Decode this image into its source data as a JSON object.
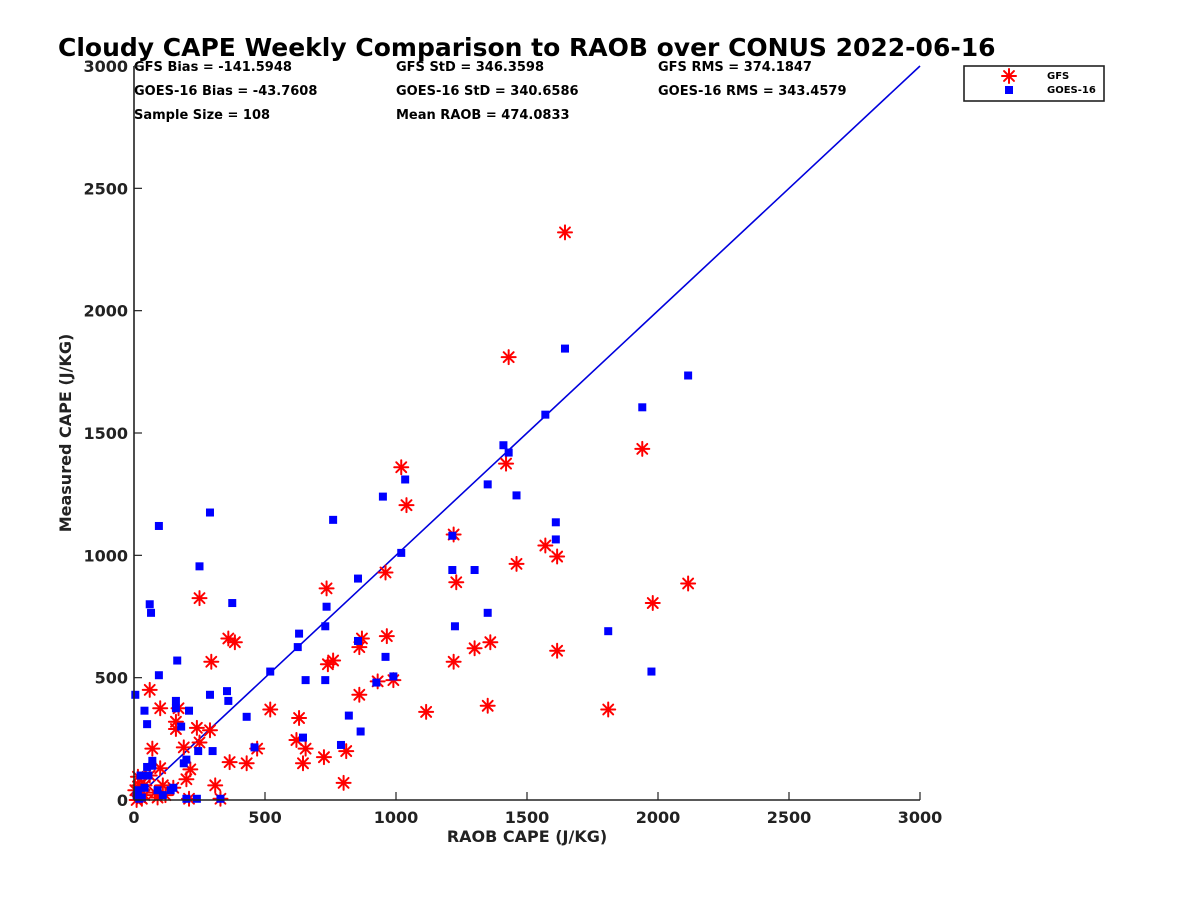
{
  "chart_data": {
    "type": "scatter",
    "title": "Cloudy CAPE Weekly Comparison to RAOB over CONUS 2022-06-16",
    "xlabel": "RAOB CAPE (J/KG)",
    "ylabel": "Measured CAPE (J/KG)",
    "xlim": [
      0,
      3000
    ],
    "ylim": [
      0,
      3000
    ],
    "xticks": [
      "0",
      "500",
      "1000",
      "1500",
      "2000",
      "2500",
      "3000"
    ],
    "yticks": [
      "0",
      "500",
      "1000",
      "1500",
      "2000",
      "2500",
      "3000"
    ],
    "grid": false,
    "legend_position": "top-right, outside plot",
    "reference_line": {
      "x": [
        0,
        3000
      ],
      "y": [
        0,
        3000
      ],
      "color": "#0000dd"
    },
    "stats": [
      [
        "GFS Bias = -141.5948",
        "GFS StD = 346.3598",
        "GFS RMS = 374.1847"
      ],
      [
        "GOES-16 Bias = -43.7608",
        "GOES-16 StD = 340.6586",
        "GOES-16 RMS = 343.4579"
      ],
      [
        "Sample Size = 108",
        "Mean RAOB = 474.0833",
        ""
      ]
    ],
    "series": [
      {
        "name": "GFS",
        "marker": "asterisk",
        "color": "#ff0000",
        "points": [
          [
            1645,
            2320
          ],
          [
            1430,
            1810
          ],
          [
            1940,
            1435
          ],
          [
            1420,
            1375
          ],
          [
            1020,
            1360
          ],
          [
            1040,
            1205
          ],
          [
            1220,
            1085
          ],
          [
            1230,
            890
          ],
          [
            1460,
            965
          ],
          [
            1570,
            1040
          ],
          [
            1615,
            995
          ],
          [
            960,
            930
          ],
          [
            2115,
            885
          ],
          [
            1980,
            805
          ],
          [
            1615,
            610
          ],
          [
            1360,
            645
          ],
          [
            1300,
            620
          ],
          [
            1220,
            565
          ],
          [
            1350,
            385
          ],
          [
            1810,
            370
          ],
          [
            1115,
            360
          ],
          [
            965,
            670
          ],
          [
            870,
            660
          ],
          [
            860,
            625
          ],
          [
            990,
            490
          ],
          [
            930,
            485
          ],
          [
            860,
            430
          ],
          [
            810,
            200
          ],
          [
            800,
            70
          ],
          [
            735,
            865
          ],
          [
            760,
            570
          ],
          [
            740,
            555
          ],
          [
            725,
            175
          ],
          [
            655,
            210
          ],
          [
            645,
            150
          ],
          [
            630,
            335
          ],
          [
            620,
            245
          ],
          [
            520,
            370
          ],
          [
            470,
            210
          ],
          [
            430,
            150
          ],
          [
            365,
            155
          ],
          [
            385,
            645
          ],
          [
            360,
            660
          ],
          [
            250,
            825
          ],
          [
            295,
            565
          ],
          [
            290,
            285
          ],
          [
            250,
            235
          ],
          [
            240,
            295
          ],
          [
            215,
            125
          ],
          [
            210,
            5
          ],
          [
            200,
            85
          ],
          [
            190,
            215
          ],
          [
            160,
            290
          ],
          [
            160,
            320
          ],
          [
            170,
            375
          ],
          [
            150,
            50
          ],
          [
            100,
            375
          ],
          [
            110,
            60
          ],
          [
            70,
            210
          ],
          [
            60,
            450
          ],
          [
            60,
            100
          ],
          [
            40,
            20
          ],
          [
            80,
            30
          ],
          [
            90,
            10
          ],
          [
            30,
            5
          ],
          [
            20,
            60
          ],
          [
            10,
            0
          ],
          [
            15,
            95
          ],
          [
            40,
            60
          ],
          [
            5,
            40
          ],
          [
            330,
            5
          ],
          [
            310,
            60
          ],
          [
            120,
            20
          ],
          [
            100,
            130
          ]
        ]
      },
      {
        "name": "GOES-16",
        "marker": "square",
        "color": "#0000ff",
        "points": [
          [
            1645,
            1845
          ],
          [
            2115,
            1735
          ],
          [
            1940,
            1605
          ],
          [
            1570,
            1575
          ],
          [
            1410,
            1450
          ],
          [
            1430,
            1420
          ],
          [
            1350,
            1290
          ],
          [
            1460,
            1245
          ],
          [
            950,
            1240
          ],
          [
            1035,
            1310
          ],
          [
            1020,
            1010
          ],
          [
            1215,
            1080
          ],
          [
            1610,
            1135
          ],
          [
            1610,
            1065
          ],
          [
            1215,
            940
          ],
          [
            1300,
            940
          ],
          [
            1225,
            710
          ],
          [
            1350,
            765
          ],
          [
            1810,
            690
          ],
          [
            1975,
            525
          ],
          [
            760,
            1145
          ],
          [
            855,
            905
          ],
          [
            735,
            790
          ],
          [
            730,
            710
          ],
          [
            630,
            680
          ],
          [
            625,
            625
          ],
          [
            960,
            585
          ],
          [
            855,
            650
          ],
          [
            990,
            505
          ],
          [
            925,
            480
          ],
          [
            865,
            280
          ],
          [
            820,
            345
          ],
          [
            790,
            225
          ],
          [
            730,
            490
          ],
          [
            655,
            490
          ],
          [
            645,
            255
          ],
          [
            520,
            525
          ],
          [
            460,
            215
          ],
          [
            430,
            340
          ],
          [
            375,
            805
          ],
          [
            360,
            405
          ],
          [
            355,
            445
          ],
          [
            290,
            1175
          ],
          [
            250,
            955
          ],
          [
            290,
            430
          ],
          [
            300,
            200
          ],
          [
            245,
            200
          ],
          [
            240,
            5
          ],
          [
            210,
            365
          ],
          [
            200,
            165
          ],
          [
            190,
            150
          ],
          [
            180,
            300
          ],
          [
            165,
            570
          ],
          [
            160,
            405
          ],
          [
            160,
            375
          ],
          [
            150,
            50
          ],
          [
            140,
            40
          ],
          [
            95,
            1120
          ],
          [
            95,
            510
          ],
          [
            60,
            800
          ],
          [
            65,
            765
          ],
          [
            50,
            310
          ],
          [
            40,
            365
          ],
          [
            50,
            135
          ],
          [
            70,
            160
          ],
          [
            70,
            140
          ],
          [
            55,
            100
          ],
          [
            40,
            50
          ],
          [
            30,
            10
          ],
          [
            25,
            100
          ],
          [
            10,
            20
          ],
          [
            5,
            430
          ],
          [
            90,
            40
          ],
          [
            110,
            20
          ],
          [
            200,
            5
          ],
          [
            330,
            5
          ],
          [
            20,
            5
          ],
          [
            15,
            40
          ]
        ]
      }
    ]
  }
}
